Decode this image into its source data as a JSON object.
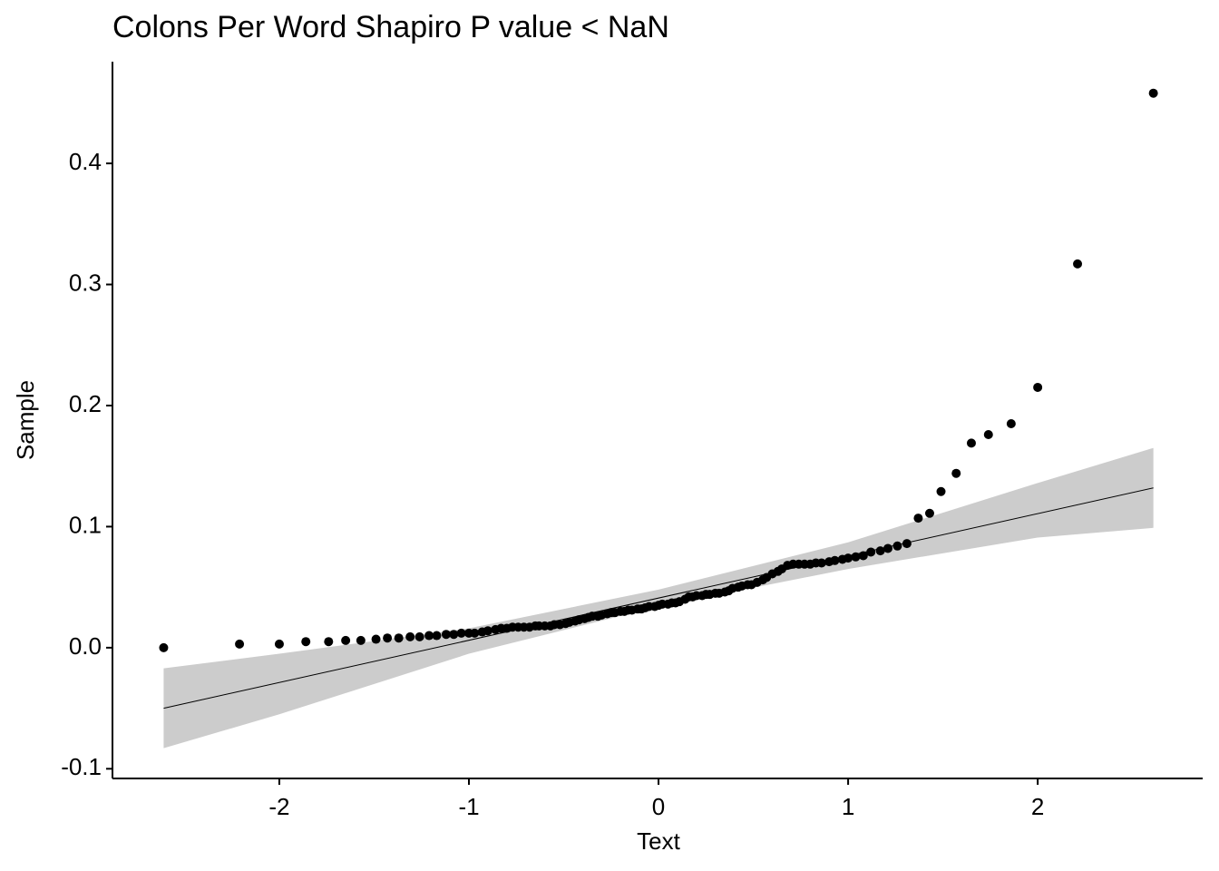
{
  "chart_data": {
    "type": "scatter",
    "title": "Colons Per Word Shapiro P value <  NaN",
    "x_label": "Text",
    "y_label": "Sample",
    "color": "#000000",
    "x": [
      -2.61,
      -2.21,
      -2.0,
      -1.86,
      -1.74,
      -1.65,
      -1.57,
      -1.49,
      -1.43,
      -1.37,
      -1.31,
      -1.26,
      -1.21,
      -1.17,
      -1.12,
      -1.08,
      -1.04,
      -1.0,
      -0.97,
      -0.93,
      -0.9,
      -0.86,
      -0.83,
      -0.8,
      -0.77,
      -0.74,
      -0.71,
      -0.68,
      -0.65,
      -0.63,
      -0.6,
      -0.57,
      -0.55,
      -0.52,
      -0.49,
      -0.47,
      -0.44,
      -0.42,
      -0.39,
      -0.37,
      -0.35,
      -0.32,
      -0.3,
      -0.27,
      -0.25,
      -0.23,
      -0.2,
      -0.18,
      -0.16,
      -0.14,
      -0.11,
      -0.09,
      -0.07,
      -0.05,
      -0.02,
      0,
      0.02,
      0.05,
      0.07,
      0.09,
      0.11,
      0.14,
      0.16,
      0.18,
      0.2,
      0.23,
      0.25,
      0.27,
      0.3,
      0.32,
      0.35,
      0.37,
      0.39,
      0.42,
      0.44,
      0.47,
      0.49,
      0.52,
      0.55,
      0.57,
      0.6,
      0.63,
      0.65,
      0.68,
      0.71,
      0.74,
      0.77,
      0.8,
      0.83,
      0.86,
      0.9,
      0.93,
      0.97,
      1.0,
      1.04,
      1.08,
      1.12,
      1.17,
      1.21,
      1.26,
      1.31,
      1.37,
      1.43,
      1.49,
      1.57,
      1.65,
      1.74,
      1.86,
      2.0,
      2.21,
      2.61
    ],
    "values": [
      0.0,
      0.003,
      0.003,
      0.005,
      0.005,
      0.006,
      0.006,
      0.007,
      0.008,
      0.008,
      0.009,
      0.009,
      0.01,
      0.01,
      0.011,
      0.011,
      0.012,
      0.012,
      0.012,
      0.013,
      0.014,
      0.015,
      0.016,
      0.016,
      0.017,
      0.017,
      0.017,
      0.017,
      0.018,
      0.018,
      0.018,
      0.018,
      0.019,
      0.019,
      0.02,
      0.021,
      0.022,
      0.023,
      0.024,
      0.025,
      0.026,
      0.026,
      0.027,
      0.028,
      0.029,
      0.029,
      0.03,
      0.03,
      0.031,
      0.031,
      0.032,
      0.032,
      0.033,
      0.034,
      0.034,
      0.035,
      0.036,
      0.036,
      0.037,
      0.037,
      0.038,
      0.04,
      0.042,
      0.042,
      0.043,
      0.043,
      0.044,
      0.044,
      0.045,
      0.045,
      0.046,
      0.047,
      0.049,
      0.05,
      0.051,
      0.052,
      0.052,
      0.054,
      0.056,
      0.058,
      0.061,
      0.063,
      0.065,
      0.068,
      0.069,
      0.069,
      0.069,
      0.069,
      0.07,
      0.07,
      0.071,
      0.072,
      0.073,
      0.074,
      0.075,
      0.076,
      0.079,
      0.08,
      0.082,
      0.084,
      0.086,
      0.107,
      0.111,
      0.129,
      0.144,
      0.169,
      0.176,
      0.185,
      0.215,
      0.317,
      0.458
    ],
    "reference_line": {
      "color": "#000000",
      "x": [
        -2.61,
        2.61
      ],
      "values": [
        -0.05,
        0.132
      ]
    },
    "band": {
      "color": "#cccccc",
      "x": [
        -2.61,
        -2.0,
        -1.0,
        0,
        1.0,
        2.0,
        2.61
      ],
      "lower": [
        -0.083,
        -0.055,
        -0.005,
        0.034,
        0.065,
        0.091,
        0.099
      ],
      "upper": [
        -0.017,
        -0.005,
        0.016,
        0.048,
        0.087,
        0.136,
        0.165
      ]
    },
    "xlim": [
      -2.88,
      2.87
    ],
    "ylim": [
      -0.108,
      0.484
    ],
    "xticks": [
      -2,
      -1,
      0,
      1,
      2
    ],
    "yticks": [
      -0.1,
      {
        "value": 0,
        "label": "0.0"
      },
      0.1,
      0.2,
      0.3,
      0.4
    ]
  }
}
